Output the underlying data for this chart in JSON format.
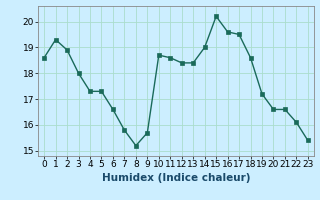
{
  "x": [
    0,
    1,
    2,
    3,
    4,
    5,
    6,
    7,
    8,
    9,
    10,
    11,
    12,
    13,
    14,
    15,
    16,
    17,
    18,
    19,
    20,
    21,
    22,
    23
  ],
  "y": [
    18.6,
    19.3,
    18.9,
    18.0,
    17.3,
    17.3,
    16.6,
    15.8,
    15.2,
    15.7,
    18.7,
    18.6,
    18.4,
    18.4,
    19.0,
    20.2,
    19.6,
    19.5,
    18.6,
    17.2,
    16.6,
    16.6,
    16.1,
    15.4
  ],
  "line_color": "#1a6a5a",
  "marker_color": "#1a6a5a",
  "bg_color": "#cceeff",
  "grid_color": "#aaddcc",
  "xlabel": "Humidex (Indice chaleur)",
  "xlim": [
    -0.5,
    23.5
  ],
  "ylim": [
    14.8,
    20.6
  ],
  "yticks": [
    15,
    16,
    17,
    18,
    19,
    20
  ],
  "xticks": [
    0,
    1,
    2,
    3,
    4,
    5,
    6,
    7,
    8,
    9,
    10,
    11,
    12,
    13,
    14,
    15,
    16,
    17,
    18,
    19,
    20,
    21,
    22,
    23
  ],
  "tick_label_fontsize": 6.5,
  "xlabel_fontsize": 7.5,
  "linewidth": 1.0,
  "markersize": 2.5
}
